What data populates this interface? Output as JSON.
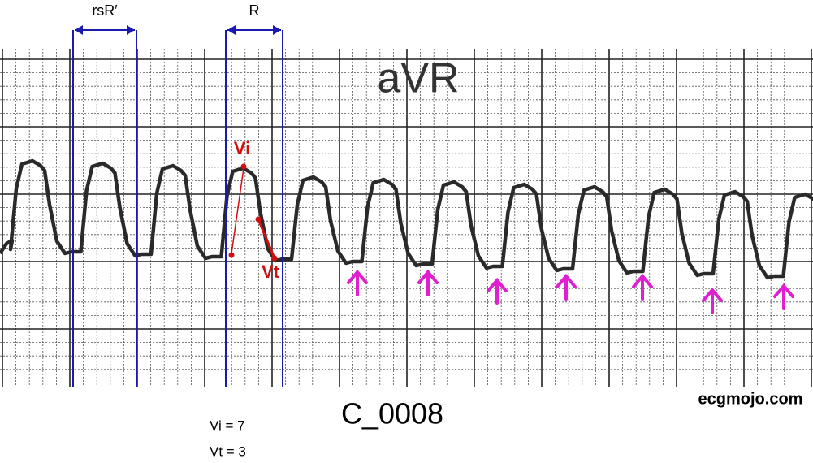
{
  "lead_label": "aVR",
  "brackets": [
    {
      "label": "rsR′"
    },
    {
      "label": "R"
    }
  ],
  "markers": [
    "Vi",
    "Vt"
  ],
  "figure_id": "C_0008",
  "watermark": "ecgmojo.com",
  "measurements": [
    "Vi = 7",
    "Vt = 3"
  ]
}
